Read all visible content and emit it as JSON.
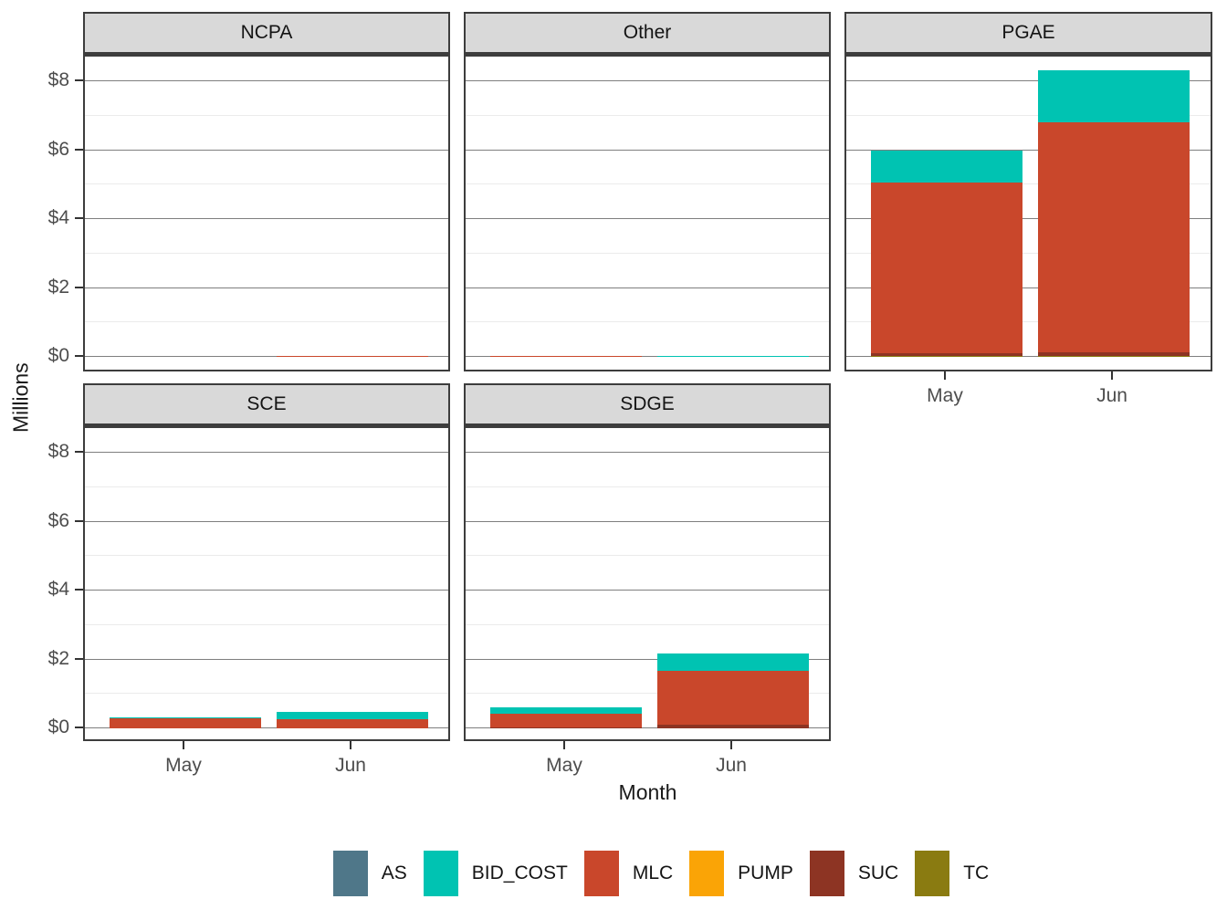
{
  "colors": {
    "AS": "#4F7789",
    "BID_COST": "#00C3B2",
    "MLC": "#C9472B",
    "PUMP": "#FAA406",
    "SUC": "#8D3423",
    "TC": "#8A7B11"
  },
  "legend": {
    "entries": [
      "AS",
      "BID_COST",
      "MLC",
      "PUMP",
      "SUC",
      "TC"
    ]
  },
  "axes": {
    "x": {
      "label": "Month",
      "tick_labels": [
        "May",
        "Jun"
      ]
    },
    "y": {
      "label": "Millions",
      "tick_labels": [
        "$0",
        "$2",
        "$4",
        "$6",
        "$8"
      ],
      "tick_values": [
        0,
        2,
        4,
        6,
        8
      ],
      "minor_values": [
        1,
        3,
        5,
        7
      ]
    }
  },
  "chart_data": {
    "type": "bar",
    "stacked": true,
    "title": "",
    "xlabel": "Month",
    "ylabel": "Millions",
    "ylim": [
      0,
      8.77
    ],
    "grid": "major-and-minor-horizontal",
    "legend_position": "bottom",
    "categories": [
      "May",
      "Jun"
    ],
    "stack_order_bottom_to_top": [
      "TC",
      "SUC",
      "PUMP",
      "MLC",
      "BID_COST",
      "AS"
    ],
    "facets": [
      {
        "label": "NCPA",
        "series": [
          {
            "name": "MLC",
            "values": [
              0,
              0.02
            ]
          }
        ]
      },
      {
        "label": "Other",
        "series": [
          {
            "name": "MLC",
            "values": [
              0.02,
              0
            ]
          },
          {
            "name": "BID_COST",
            "values": [
              0,
              0.02
            ]
          }
        ]
      },
      {
        "label": "PGAE",
        "series": [
          {
            "name": "TC",
            "values": [
              0.02,
              0.02
            ]
          },
          {
            "name": "SUC",
            "values": [
              0.09,
              0.12
            ]
          },
          {
            "name": "MLC",
            "values": [
              4.94,
              6.68
            ]
          },
          {
            "name": "BID_COST",
            "values": [
              0.95,
              1.5
            ]
          }
        ]
      },
      {
        "label": "SCE",
        "series": [
          {
            "name": "MLC",
            "values": [
              0.28,
              0.26
            ]
          },
          {
            "name": "BID_COST",
            "values": [
              0.05,
              0.23
            ]
          }
        ]
      },
      {
        "label": "SDGE",
        "series": [
          {
            "name": "SUC",
            "values": [
              0.03,
              0.11
            ]
          },
          {
            "name": "MLC",
            "values": [
              0.4,
              1.55
            ]
          },
          {
            "name": "BID_COST",
            "values": [
              0.17,
              0.52
            ]
          }
        ]
      }
    ]
  }
}
